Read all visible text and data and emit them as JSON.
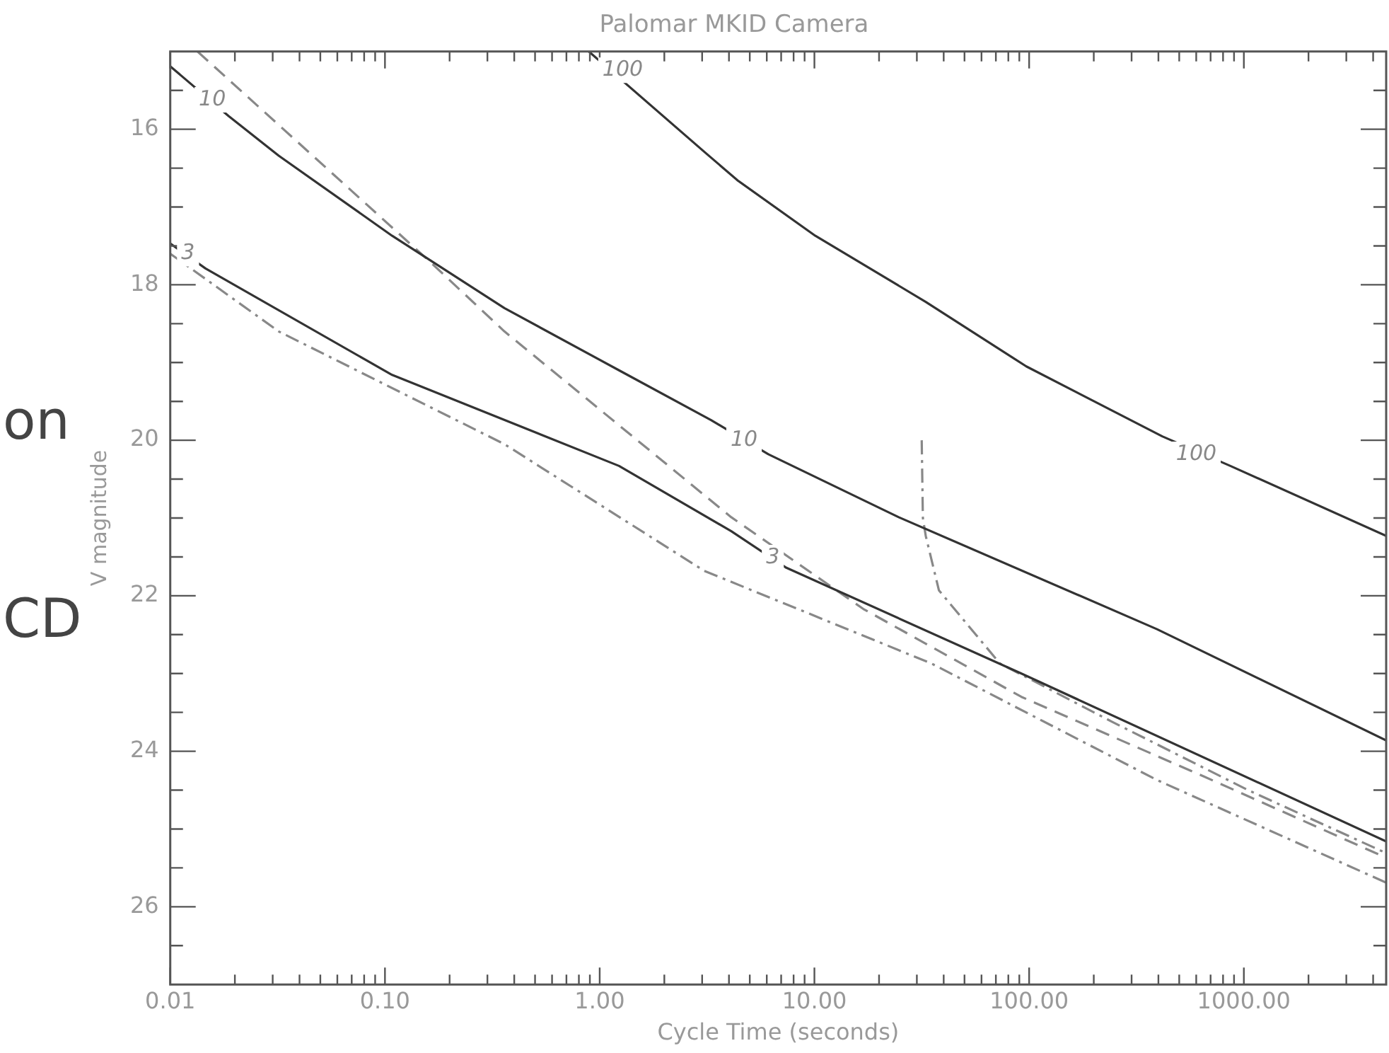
{
  "chart_data": {
    "type": "line",
    "title": "Palomar MKID Camera",
    "xlabel": "Cycle Time (seconds)",
    "ylabel": "V magnitude",
    "log": "x",
    "grid": false,
    "legend": false,
    "marker": "none",
    "xlim": [
      0.01,
      4600
    ],
    "ylim": [
      27,
      15
    ],
    "xticks": [
      {
        "value": 0.01,
        "label": "0.01"
      },
      {
        "value": 0.02,
        "label": null
      },
      {
        "value": 0.03,
        "label": null
      },
      {
        "value": 0.04,
        "label": null
      },
      {
        "value": 0.05,
        "label": null
      },
      {
        "value": 0.06,
        "label": null
      },
      {
        "value": 0.07,
        "label": null
      },
      {
        "value": 0.08,
        "label": null
      },
      {
        "value": 0.09,
        "label": null
      },
      {
        "value": 0.1,
        "label": "0.10"
      },
      {
        "value": 0.2,
        "label": null
      },
      {
        "value": 0.3,
        "label": null
      },
      {
        "value": 0.4,
        "label": null
      },
      {
        "value": 0.5,
        "label": null
      },
      {
        "value": 0.6,
        "label": null
      },
      {
        "value": 0.7,
        "label": null
      },
      {
        "value": 0.8,
        "label": null
      },
      {
        "value": 0.9,
        "label": null
      },
      {
        "value": 1,
        "label": "1.00"
      },
      {
        "value": 2,
        "label": null
      },
      {
        "value": 3,
        "label": null
      },
      {
        "value": 4,
        "label": null
      },
      {
        "value": 5,
        "label": null
      },
      {
        "value": 6,
        "label": null
      },
      {
        "value": 7,
        "label": null
      },
      {
        "value": 8,
        "label": null
      },
      {
        "value": 9,
        "label": null
      },
      {
        "value": 10,
        "label": "10.00"
      },
      {
        "value": 20,
        "label": null
      },
      {
        "value": 30,
        "label": null
      },
      {
        "value": 40,
        "label": null
      },
      {
        "value": 50,
        "label": null
      },
      {
        "value": 60,
        "label": null
      },
      {
        "value": 70,
        "label": null
      },
      {
        "value": 80,
        "label": null
      },
      {
        "value": 90,
        "label": null
      },
      {
        "value": 100,
        "label": "100.00"
      },
      {
        "value": 200,
        "label": null
      },
      {
        "value": 300,
        "label": null
      },
      {
        "value": 400,
        "label": null
      },
      {
        "value": 500,
        "label": null
      },
      {
        "value": 600,
        "label": null
      },
      {
        "value": 700,
        "label": null
      },
      {
        "value": 800,
        "label": null
      },
      {
        "value": 900,
        "label": null
      },
      {
        "value": 1000,
        "label": "1000.00"
      },
      {
        "value": 2000,
        "label": null
      },
      {
        "value": 3000,
        "label": null
      },
      {
        "value": 4000,
        "label": null
      }
    ],
    "yticks": [
      {
        "value": 15.5,
        "label": null
      },
      16,
      {
        "value": 16.5,
        "label": null
      },
      {
        "value": 17,
        "label": null
      },
      {
        "value": 17.5,
        "label": null
      },
      18,
      {
        "value": 18.5,
        "label": null
      },
      {
        "value": 19,
        "label": null
      },
      {
        "value": 19.5,
        "label": null
      },
      20,
      {
        "value": 20.5,
        "label": null
      },
      {
        "value": 21,
        "label": null
      },
      {
        "value": 21.5,
        "label": null
      },
      22,
      {
        "value": 22.5,
        "label": null
      },
      {
        "value": 23,
        "label": null
      },
      {
        "value": 23.5,
        "label": null
      },
      24,
      {
        "value": 24.5,
        "label": null
      },
      {
        "value": 25,
        "label": null
      },
      {
        "value": 25.5,
        "label": null
      },
      26,
      {
        "value": 26.5,
        "label": null
      }
    ],
    "series": [
      {
        "color": "#333333",
        "line_style": "solid",
        "x": [
          0.89,
          3.1,
          4.4,
          10.1,
          33,
          97,
          417,
          865,
          4600
        ],
        "values": [
          15.0,
          16.3,
          16.66,
          17.37,
          18.22,
          19.05,
          19.95,
          20.33,
          21.23
        ]
      },
      {
        "color": "#333333",
        "line_style": "solid",
        "x": [
          0.01,
          0.0187,
          0.032,
          0.108,
          0.36,
          1.23,
          3.3,
          6.1,
          24.7,
          394,
          4600
        ],
        "values": [
          15.19,
          15.83,
          16.34,
          17.37,
          18.3,
          19.1,
          19.74,
          20.18,
          20.99,
          22.43,
          23.86
        ]
      },
      {
        "color": "#333333",
        "line_style": "solid",
        "x": [
          0.01,
          0.0146,
          0.108,
          1.23,
          4.1,
          7.4,
          92,
          4600
        ],
        "values": [
          17.47,
          17.79,
          19.16,
          20.33,
          21.17,
          21.64,
          23.0,
          25.16
        ]
      },
      {
        "color": "#888888",
        "line_style": "dashed",
        "x": [
          0.0134,
          0.16,
          0.36,
          4.1,
          16.9,
          92,
          646,
          4600
        ],
        "values": [
          15.0,
          17.69,
          18.6,
          20.99,
          22.17,
          23.3,
          24.32,
          25.37
        ]
      },
      {
        "color": "#888888",
        "line_style": "dashdot",
        "x": [
          0.01,
          0.032,
          0.36,
          3.07,
          35,
          394,
          4600
        ],
        "values": [
          17.6,
          18.6,
          20.05,
          21.68,
          22.87,
          24.37,
          25.69
        ]
      },
      {
        "color": "#888888",
        "line_style": "dashdot",
        "x": [
          31.6,
          32,
          33,
          38,
          73,
          243,
          1047,
          4600
        ],
        "values": [
          20.0,
          21.0,
          21.23,
          21.93,
          22.87,
          23.62,
          24.5,
          25.31
        ]
      }
    ],
    "annotations": [
      {
        "text": "100",
        "x": 1.28,
        "y": 15.24
      },
      {
        "text": "100",
        "x": 600,
        "y": 20.18
      },
      {
        "text": "10",
        "x": 0.0157,
        "y": 15.62
      },
      {
        "text": "10",
        "x": 4.7,
        "y": 20.0
      },
      {
        "text": "3",
        "x": 0.0121,
        "y": 17.6
      },
      {
        "text": "3",
        "x": 6.4,
        "y": 21.51
      },
      "on",
      "CD"
    ]
  }
}
